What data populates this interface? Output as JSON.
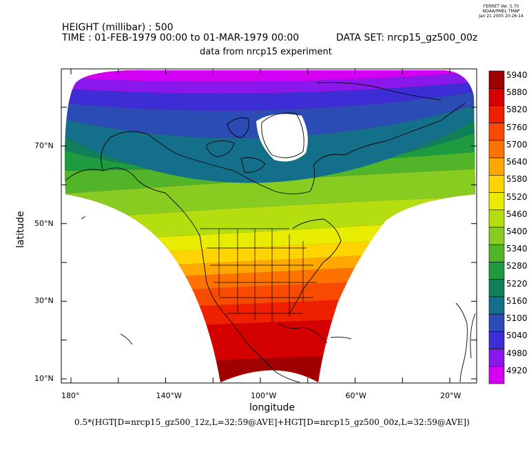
{
  "stamp": {
    "line1": "FERRET Ver. 5.70",
    "line2": "NOAA/PMEL TMAP",
    "line3": "Jan 21 2005 20:26:14"
  },
  "header": {
    "variable": "HEIGHT (millibar) : 500",
    "time": "TIME : 01-FEB-1979 00:00 to 01-MAR-1979 00:00",
    "dataset": "DATA SET: nrcp15_gz500_00z",
    "subtitle": "data from nrcp15 experiment"
  },
  "axes": {
    "xlabel": "longitude",
    "ylabel": "latitude",
    "xticks": [
      {
        "value": 180,
        "label": "180°"
      },
      {
        "value": 140,
        "label": "140°W"
      },
      {
        "value": 100,
        "label": "100°W"
      },
      {
        "value": 60,
        "label": "60°W"
      },
      {
        "value": 20,
        "label": "20°W"
      }
    ],
    "yticks": [
      {
        "value": 70,
        "label": "70°N"
      },
      {
        "value": 50,
        "label": "50°N"
      },
      {
        "value": 30,
        "label": "30°N"
      },
      {
        "value": 10,
        "label": "10°N"
      }
    ]
  },
  "footer": {
    "expression": "0.5*(HGT[D=nrcp15_gz500_12z,L=32:59@AVE]+HGT[D=nrcp15_gz500_00z,L=32:59@AVE])"
  },
  "colorbar": {
    "levels": [
      "5940",
      "5880",
      "5820",
      "5760",
      "5700",
      "5640",
      "5580",
      "5520",
      "5460",
      "5400",
      "5340",
      "5280",
      "5220",
      "5160",
      "5100",
      "5040",
      "4980",
      "4920"
    ],
    "colors": [
      "#a00000",
      "#d40000",
      "#ee2000",
      "#f84a00",
      "#ff7200",
      "#ffa800",
      "#ffd400",
      "#e8ec00",
      "#b4de10",
      "#88cc22",
      "#52b428",
      "#1e9a40",
      "#108058",
      "#14708a",
      "#2a4cb4",
      "#3c2ed4",
      "#8a18ec",
      "#d400f4"
    ]
  },
  "map_data": {
    "projection": "curvilinear",
    "field": "HGT 500 mb",
    "units": "millibar height",
    "lat_range": [
      10,
      88
    ],
    "lon_range": [
      "180°",
      "20°W"
    ]
  }
}
